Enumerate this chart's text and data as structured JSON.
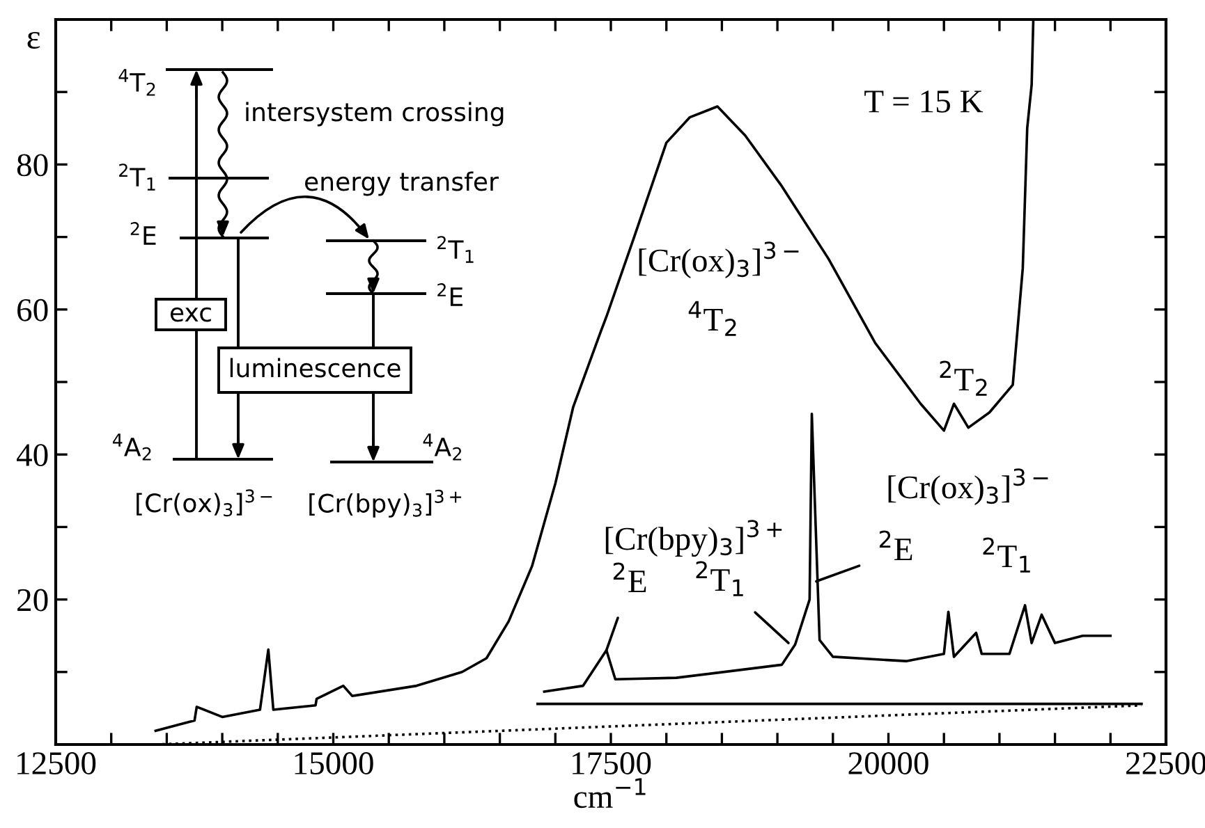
{
  "chart_data": {
    "type": "line",
    "xlabel": "cm$^{−1}$",
    "ylabel": "ε",
    "xlim": [
      12500,
      22500
    ],
    "ylim": [
      0,
      100
    ],
    "xticks": [
      12500,
      {
        "value": 13000,
        "label": null
      },
      {
        "value": 13500,
        "label": null
      },
      {
        "value": 14000,
        "label": null
      },
      {
        "value": 14500,
        "label": null
      },
      15000,
      {
        "value": 15500,
        "label": null
      },
      {
        "value": 16000,
        "label": null
      },
      {
        "value": 16500,
        "label": null
      },
      {
        "value": 17000,
        "label": null
      },
      17500,
      {
        "value": 18000,
        "label": null
      },
      {
        "value": 18500,
        "label": null
      },
      {
        "value": 19000,
        "label": null
      },
      {
        "value": 19500,
        "label": null
      },
      20000,
      {
        "value": 20500,
        "label": null
      },
      {
        "value": 21000,
        "label": null
      },
      {
        "value": 21500,
        "label": null
      },
      {
        "value": 22000,
        "label": null
      },
      22500
    ],
    "yticks": [
      {
        "value": 10,
        "label": null
      },
      20,
      {
        "value": 30,
        "label": null
      },
      40,
      {
        "value": 50,
        "label": null
      },
      60,
      {
        "value": 70,
        "label": null
      },
      80,
      {
        "value": 90,
        "label": null
      }
    ],
    "grid": false,
    "legend": false,
    "series": [
      {
        "color": "#000000",
        "x": [
          13400,
          13750,
          13770,
          14000,
          14340,
          14415,
          14460,
          14840,
          14850,
          15090,
          15170,
          15750,
          16160,
          16380,
          16580,
          16790,
          17000,
          17160,
          17410,
          17460,
          17710,
          18000,
          18210,
          18460,
          18710,
          19040,
          19460,
          19880,
          20290,
          20500,
          20590,
          20720,
          20910,
          21120,
          21210,
          21250,
          21290,
          21305
        ],
        "values": [
          1.9,
          3.3,
          5.2,
          3.8,
          4.8,
          13.1,
          4.8,
          5.4,
          6.3,
          8.1,
          6.7,
          8.1,
          10,
          11.9,
          17,
          24.6,
          36,
          46.5,
          57,
          59,
          70,
          83,
          86.5,
          88,
          84,
          77,
          67,
          55.4,
          47,
          43.3,
          47,
          43.7,
          45.8,
          49.6,
          65.7,
          85,
          91,
          100
        ]
      },
      {
        "color": "#000000",
        "x": [
          16900,
          17250,
          17460,
          17540,
          18090,
          19040,
          19160,
          19290,
          19310,
          19380,
          19500,
          20160,
          20500,
          20540,
          20590,
          20790,
          20840,
          21090,
          21230,
          21290,
          21380,
          21500,
          21750,
          22000
        ],
        "values": [
          7.3,
          8.1,
          13,
          9,
          9.2,
          11,
          13.8,
          20,
          45.6,
          14.4,
          12.1,
          11.5,
          12.5,
          18.3,
          12.1,
          15.4,
          12.5,
          12.5,
          19.2,
          14,
          17.9,
          14,
          15,
          15
        ]
      },
      {
        "color": "#000000",
        "x": [
          16840,
          22280
        ],
        "values": [
          5.6,
          5.6
        ],
        "line_style": "solid"
      },
      {
        "color": "#000000",
        "x": [
          13400,
          22280
        ],
        "values": [
          0,
          5.4
        ],
        "line_style": "dotted"
      }
    ],
    "annotations": [
      "$^{4}$T$_{2}$",
      "$^{2}$T$_{1}$",
      "$^{2}$E",
      "$^{4}$A$_{2}$",
      "intersystem crossing",
      "energy transfer",
      "$^{2}$T$_{1}$",
      "$^{2}$E",
      "$^{4}$A$_{2}$",
      "[Cr(ox)$_{3}$]$^{3−}$",
      "[Cr(bpy)$_{3}$]$^{3+}$",
      "exc",
      "luminescence",
      "T = 15 K",
      "[Cr(ox)$_{3}$]$^{3−}$",
      "$^{4}$T$_{2}$",
      "$^{2}$T$_{2}$",
      "[Cr(ox)$_{3}$]$^{3−}$",
      "$^{2}$T$_{1}$",
      "[Cr(bpy)$_{3}$]$^{3+}$",
      {
        "text": "$^{2}$E",
        "x": 17460,
        "y": 13
      },
      {
        "text": "$^{2}$T$_{1}$",
        "x": 19100,
        "y": 14
      },
      {
        "text": "$^{2}$E",
        "x": 19350,
        "y": 22.5
      }
    ]
  }
}
